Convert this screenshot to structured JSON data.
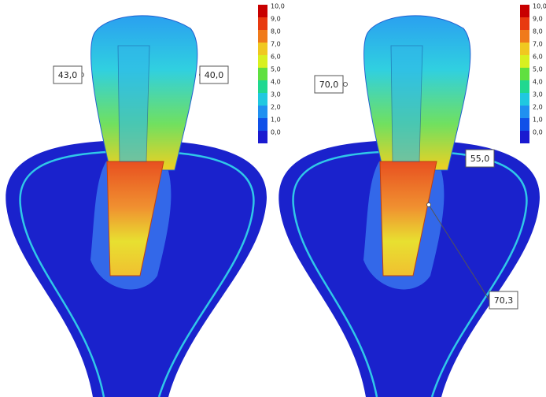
{
  "panels": [
    {
      "legend": {
        "labels": [
          "10,0",
          "9,0",
          "8,0",
          "7,0",
          "6,0",
          "5,0",
          "4,0",
          "3,0",
          "2,0",
          "1,0",
          "0,0"
        ],
        "colors": [
          "#c80000",
          "#e83a10",
          "#f07a1a",
          "#f0c820",
          "#d8f020",
          "#60e040",
          "#20d890",
          "#20c8e0",
          "#2090f0",
          "#1050e8",
          "#1a1ad0"
        ]
      },
      "callouts": [
        "43,0",
        "40,0"
      ]
    },
    {
      "legend": {
        "labels": [
          "10,0",
          "9,0",
          "8,0",
          "7,0",
          "6,0",
          "5,0",
          "4,0",
          "3,0",
          "2,0",
          "1,0",
          "0,0"
        ],
        "colors": [
          "#c80000",
          "#e83a10",
          "#f07a1a",
          "#f0c820",
          "#d8f020",
          "#60e040",
          "#20d890",
          "#20c8e0",
          "#2090f0",
          "#1050e8",
          "#1a1ad0"
        ]
      },
      "callouts": [
        "70,0",
        "55,0",
        "70,3"
      ]
    }
  ]
}
